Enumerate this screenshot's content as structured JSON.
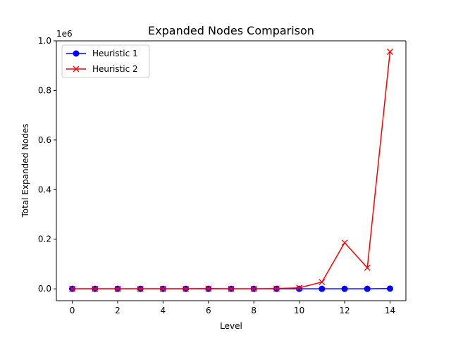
{
  "chart_data": {
    "type": "line",
    "title": "Expanded Nodes Comparison",
    "xlabel": "Level",
    "ylabel": "Total Expanded Nodes",
    "y_offset_label": "1e6",
    "xlim": [
      -0.7,
      14.7
    ],
    "ylim": [
      -0.0478,
      1.0
    ],
    "x_ticks": [
      0,
      2,
      4,
      6,
      8,
      10,
      12,
      14
    ],
    "y_ticks": [
      0.0,
      0.2,
      0.4,
      0.6,
      0.8,
      1.0
    ],
    "y_tick_labels": [
      "0.0",
      "0.2",
      "0.4",
      "0.6",
      "0.8",
      "1.0"
    ],
    "grid": false,
    "legend_position": "top-left",
    "x": [
      0,
      1,
      2,
      3,
      4,
      5,
      6,
      7,
      8,
      9,
      10,
      11,
      12,
      13,
      14
    ],
    "series": [
      {
        "name": "Heuristic 1",
        "color": "#0000ff",
        "marker": "circle",
        "values": [
          0.0,
          0.0,
          0.0,
          0.0,
          0.0,
          0.0,
          0.0,
          0.0,
          0.0,
          0.0,
          0.0,
          0.0,
          0.0,
          0.0,
          0.001
        ]
      },
      {
        "name": "Heuristic 2",
        "color": "#ff0000",
        "marker": "x",
        "values": [
          0.0,
          0.0,
          0.0,
          0.0,
          0.0,
          0.0,
          0.001,
          0.0,
          0.0,
          0.001,
          0.004,
          0.027,
          0.186,
          0.085,
          0.956
        ]
      }
    ]
  }
}
